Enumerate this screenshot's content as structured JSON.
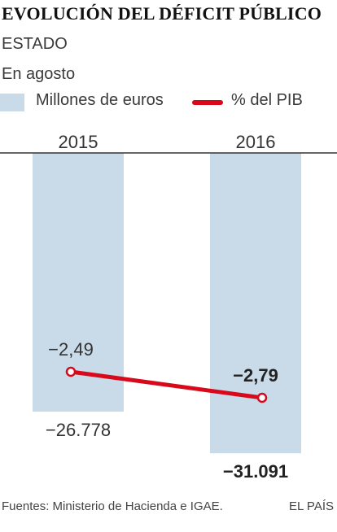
{
  "header": {
    "title": "EVOLUCIÓN DEL DÉFICIT PÚBLICO",
    "subtitle": "ESTADO",
    "note": "En agosto"
  },
  "legend": {
    "bar_label": "Millones de euros",
    "line_label": "% del PIB"
  },
  "footer": {
    "source": "Fuentes: Ministerio de Hacienda e IGAE.",
    "brand": "EL PAÍS"
  },
  "colors": {
    "bar": "#c9dbe8",
    "line": "#d7091a",
    "axis": "#333333"
  },
  "chart_data": {
    "type": "bar",
    "categories": [
      "2015",
      "2016"
    ],
    "series": [
      {
        "name": "Millones de euros",
        "type": "bar",
        "values": [
          -26778,
          -31091
        ],
        "labels": [
          "−26.778",
          "−31.091"
        ],
        "label_bold": [
          false,
          true
        ]
      },
      {
        "name": "% del PIB",
        "type": "line",
        "values": [
          -2.49,
          -2.79
        ],
        "labels": [
          "−2,49",
          "−2,79"
        ],
        "label_bold": [
          false,
          true
        ]
      }
    ]
  }
}
